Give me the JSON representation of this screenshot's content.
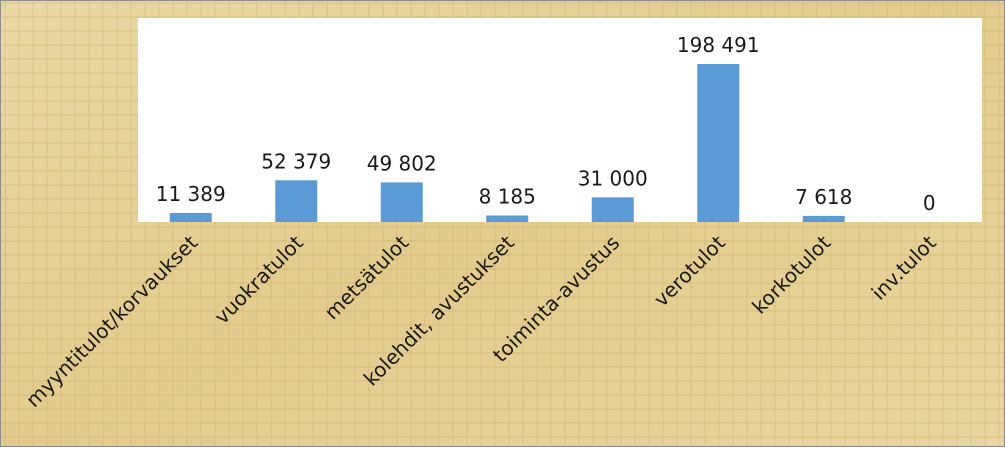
{
  "chart_data": {
    "type": "bar",
    "categories": [
      "myyntitulot/korvaukset",
      "vuokratulot",
      "metsätulot",
      "kolehdit, avustukset",
      "toiminta-avustus",
      "verotulot",
      "korkotulot",
      "inv.tulot"
    ],
    "values": [
      11389,
      52379,
      49802,
      8185,
      31000,
      198491,
      7618,
      0
    ],
    "value_labels": [
      "11 389",
      "52 379",
      "49 802",
      "8 185",
      "31 000",
      "198 491",
      "7 618",
      "0"
    ],
    "color": "#5b9bd5"
  }
}
